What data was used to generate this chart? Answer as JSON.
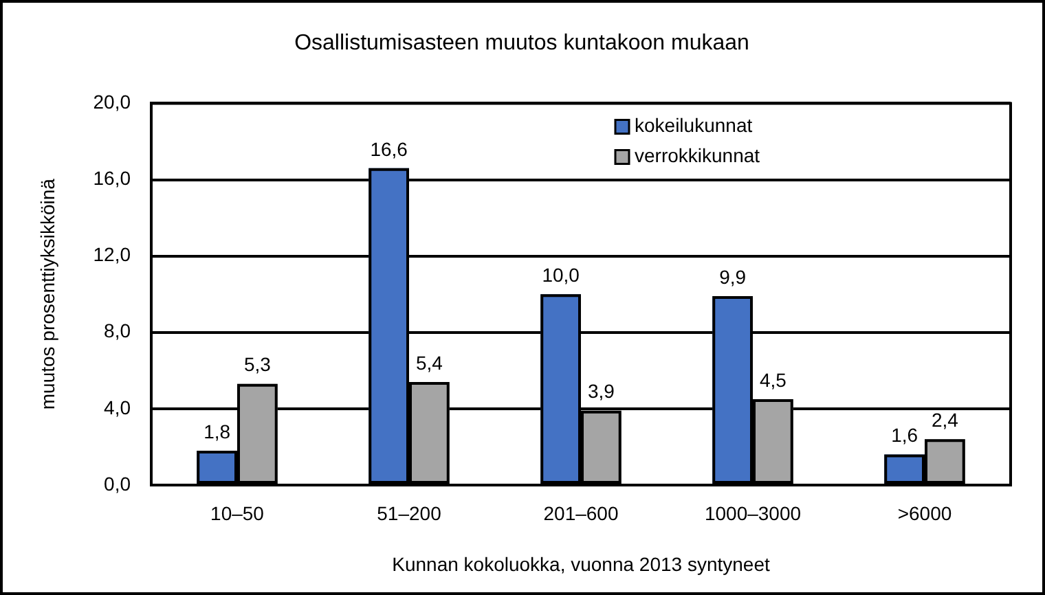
{
  "chart_data": {
    "type": "bar",
    "title": "Osallistumisasteen muutos kuntakoon mukaan",
    "xlabel": "Kunnan kokoluokka, vuonna 2013 syntyneet",
    "ylabel": "muutos prosenttiyksikköinä",
    "categories": [
      "10–50",
      "51–200",
      "201–600",
      "1000–3000",
      ">6000"
    ],
    "series": [
      {
        "name": "kokeilukunnat",
        "color": "#4472c4",
        "values": [
          1.8,
          16.6,
          10.0,
          9.9,
          1.6
        ],
        "value_labels": [
          "1,8",
          "16,6",
          "10,0",
          "9,9",
          "1,6"
        ]
      },
      {
        "name": "verrokkikunnat",
        "color": "#a5a5a5",
        "values": [
          5.3,
          5.4,
          3.9,
          4.5,
          2.4
        ],
        "value_labels": [
          "5,3",
          "5,4",
          "3,9",
          "4,5",
          "2,4"
        ]
      }
    ],
    "ylim": [
      0,
      20
    ],
    "yticks": [
      {
        "value": 0,
        "label": "0,0"
      },
      {
        "value": 4,
        "label": "4,0"
      },
      {
        "value": 8,
        "label": "8,0"
      },
      {
        "value": 12,
        "label": "12,0"
      },
      {
        "value": 16,
        "label": "16,0"
      },
      {
        "value": 20,
        "label": "20,0"
      }
    ],
    "grid": "y",
    "legend": "top"
  }
}
